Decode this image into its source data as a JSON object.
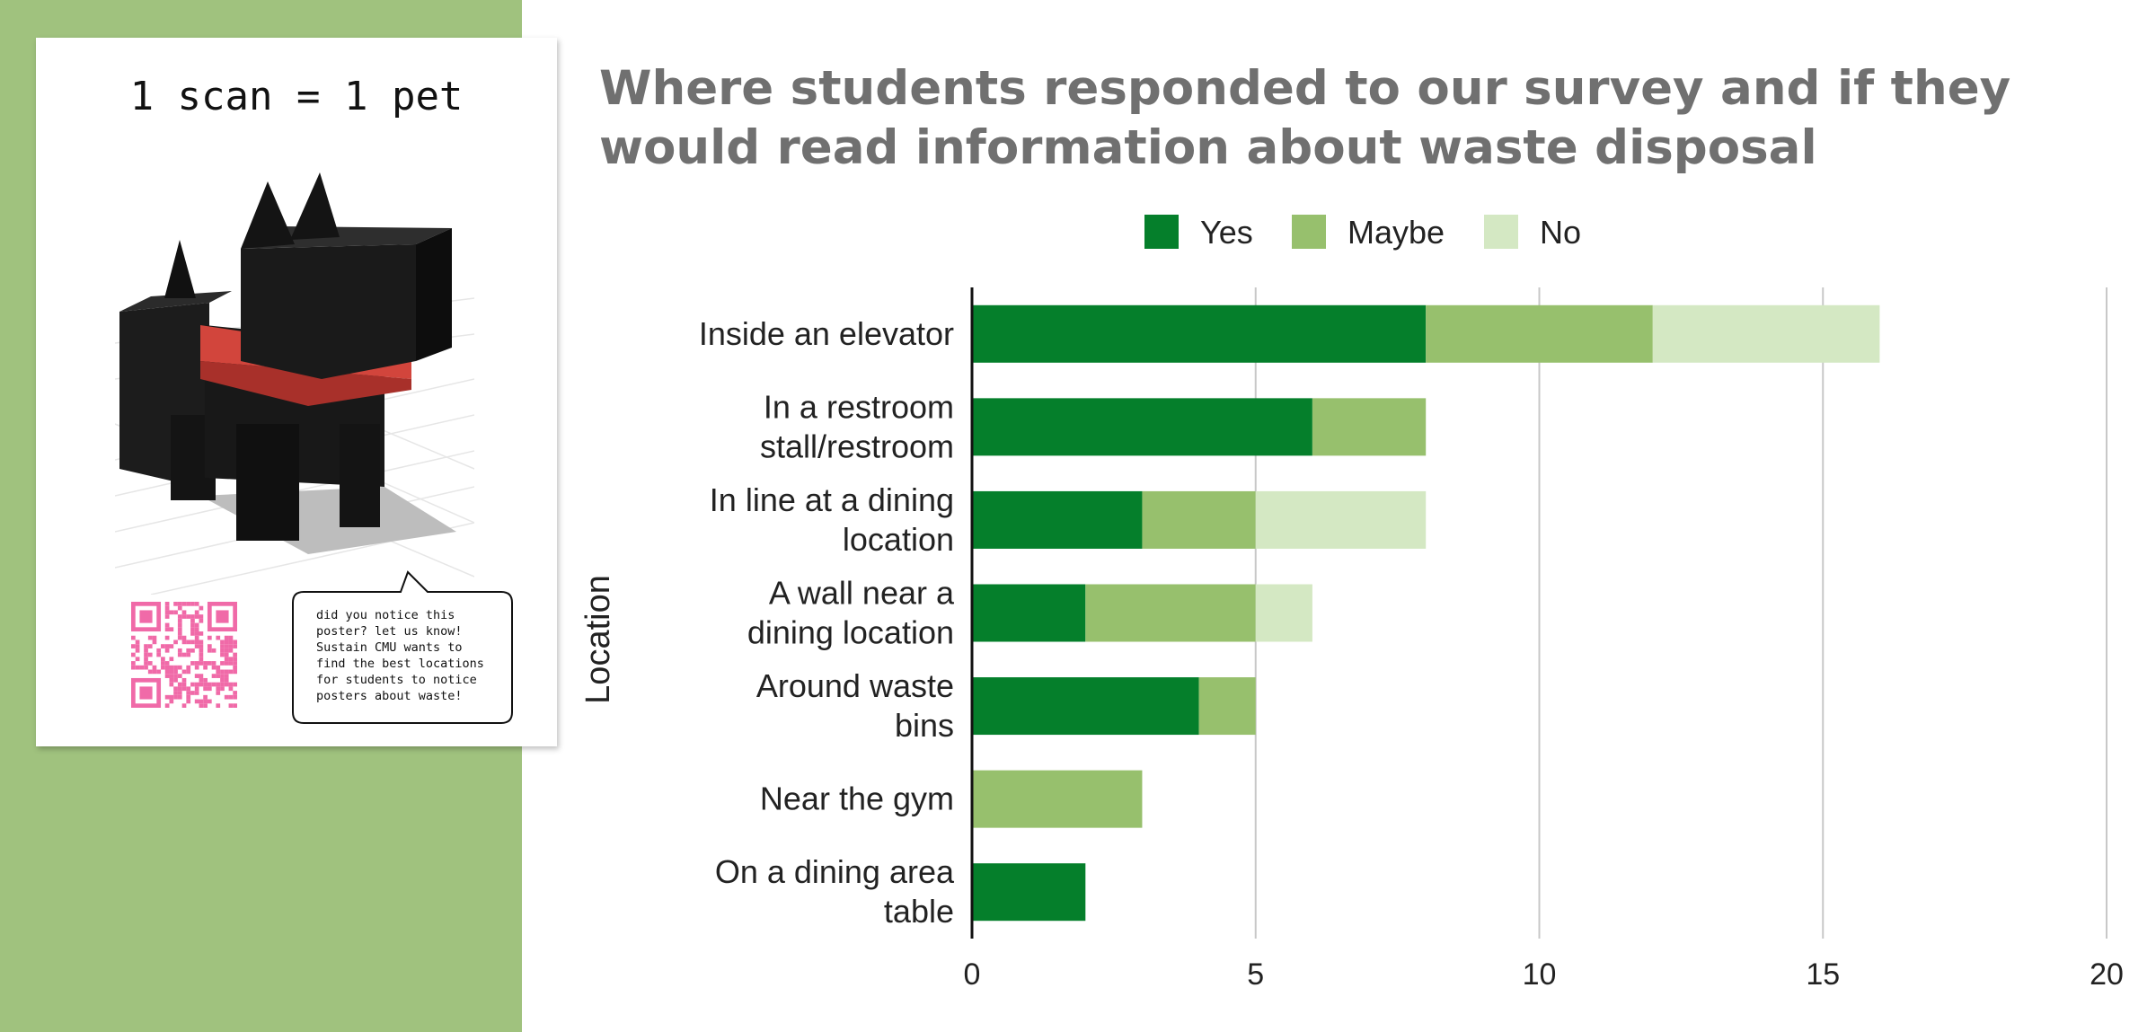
{
  "poster": {
    "heading": "1 scan = 1 pet",
    "speech_lines": [
      "did you notice this",
      "poster? let us know!",
      "Sustain CMU wants to",
      "find the best locations",
      "for students to notice",
      "posters about waste!"
    ],
    "qr_color": "#f06aa8",
    "pet_body_color": "#161616",
    "pet_collar_color": "#c7372f"
  },
  "colors": {
    "panel": "#a0c27e",
    "title": "#707070"
  },
  "chart_data": {
    "type": "bar",
    "orientation": "horizontal",
    "stacked": true,
    "title": "Where students responded to our survey and if they would read information about waste disposal",
    "ylabel": "Location",
    "xlabel": "",
    "xlim": [
      0,
      20
    ],
    "xticks": [
      0,
      5,
      10,
      15,
      20
    ],
    "grid": true,
    "legend_position": "top",
    "categories": [
      [
        "Inside an elevator"
      ],
      [
        "In a restroom",
        "stall/restroom"
      ],
      [
        "In line at a dining",
        "location"
      ],
      [
        "A wall near a",
        "dining location"
      ],
      [
        "Around waste",
        "bins"
      ],
      [
        "Near the gym"
      ],
      [
        "On a dining area",
        "table"
      ]
    ],
    "series": [
      {
        "name": "Yes",
        "color": "#057f2b",
        "values": [
          8,
          6,
          3,
          2,
          4,
          0,
          2
        ]
      },
      {
        "name": "Maybe",
        "color": "#97c06d",
        "values": [
          4,
          2,
          2,
          3,
          1,
          3,
          0
        ]
      },
      {
        "name": "No",
        "color": "#d4e8c3",
        "values": [
          4,
          0,
          3,
          1,
          0,
          0,
          0
        ]
      }
    ]
  }
}
